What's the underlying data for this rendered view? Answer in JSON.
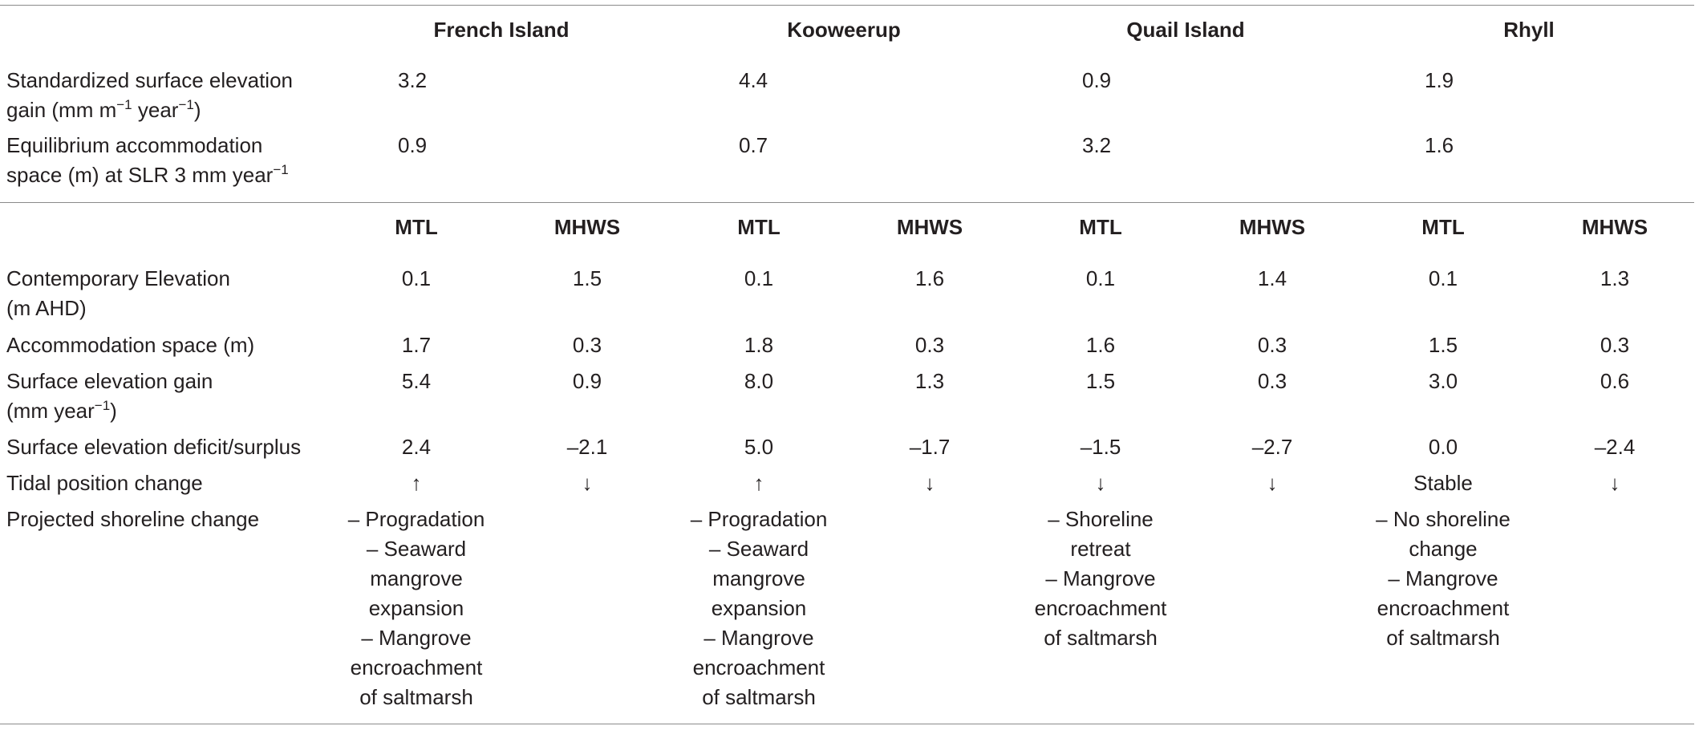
{
  "sites": [
    "French Island",
    "Kooweerup",
    "Quail Island",
    "Rhyll"
  ],
  "site_rows": [
    {
      "label_line1": "Standardized surface elevation",
      "label_line2_pre": "gain (mm m",
      "label_sup1": "−1",
      "label_mid": " year",
      "label_sup2": "−1",
      "label_post": ")",
      "values": [
        "3.2",
        "4.4",
        "0.9",
        "1.9"
      ]
    },
    {
      "label_line1": "Equilibrium accommodation",
      "label_line2_pre": "space (m) at SLR 3 mm year",
      "label_sup": "−1",
      "values": [
        "0.9",
        "0.7",
        "3.2",
        "1.6"
      ]
    }
  ],
  "sub_headers": [
    "MTL",
    "MHWS",
    "MTL",
    "MHWS",
    "MTL",
    "MHWS",
    "MTL",
    "MHWS"
  ],
  "rows": {
    "contemporary_elevation": {
      "label_line1": "Contemporary Elevation",
      "label_line2": "(m AHD)",
      "values": [
        "0.1",
        "1.5",
        "0.1",
        "1.6",
        "0.1",
        "1.4",
        "0.1",
        "1.3"
      ]
    },
    "accommodation_space": {
      "label": "Accommodation space (m)",
      "values": [
        "1.7",
        "0.3",
        "1.8",
        "0.3",
        "1.6",
        "0.3",
        "1.5",
        "0.3"
      ]
    },
    "surface_elevation_gain": {
      "label_line1": "Surface elevation gain",
      "label_line2_pre": "(mm year",
      "label_sup": "−1",
      "label_line2_post": ")",
      "values": [
        "5.4",
        "0.9",
        "8.0",
        "1.3",
        "1.5",
        "0.3",
        "3.0",
        "0.6"
      ]
    },
    "deficit_surplus": {
      "label": "Surface elevation deficit/surplus",
      "values": [
        "2.4",
        "–2.1",
        "5.0",
        "–1.7",
        "–1.5",
        "–2.7",
        "0.0",
        "–2.4"
      ]
    },
    "tidal_position": {
      "label": "Tidal position change",
      "values": [
        "↑",
        "↓",
        "↑",
        "↓",
        "↓",
        "↓",
        "Stable",
        "↓"
      ]
    },
    "shoreline_change": {
      "label": "Projected shoreline change",
      "french_island": [
        "– Progradation",
        "– Seaward",
        "mangrove",
        "expansion",
        "– Mangrove",
        "encroachment",
        "of saltmarsh"
      ],
      "kooweerup": [
        "– Progradation",
        "– Seaward",
        "mangrove",
        "expansion",
        "– Mangrove",
        "encroachment",
        "of saltmarsh"
      ],
      "quail_island": [
        "– Shoreline",
        "retreat",
        "– Mangrove",
        "encroachment",
        "of saltmarsh"
      ],
      "rhyll": [
        "– No shoreline",
        "change",
        "– Mangrove",
        "encroachment",
        "of saltmarsh"
      ]
    }
  }
}
